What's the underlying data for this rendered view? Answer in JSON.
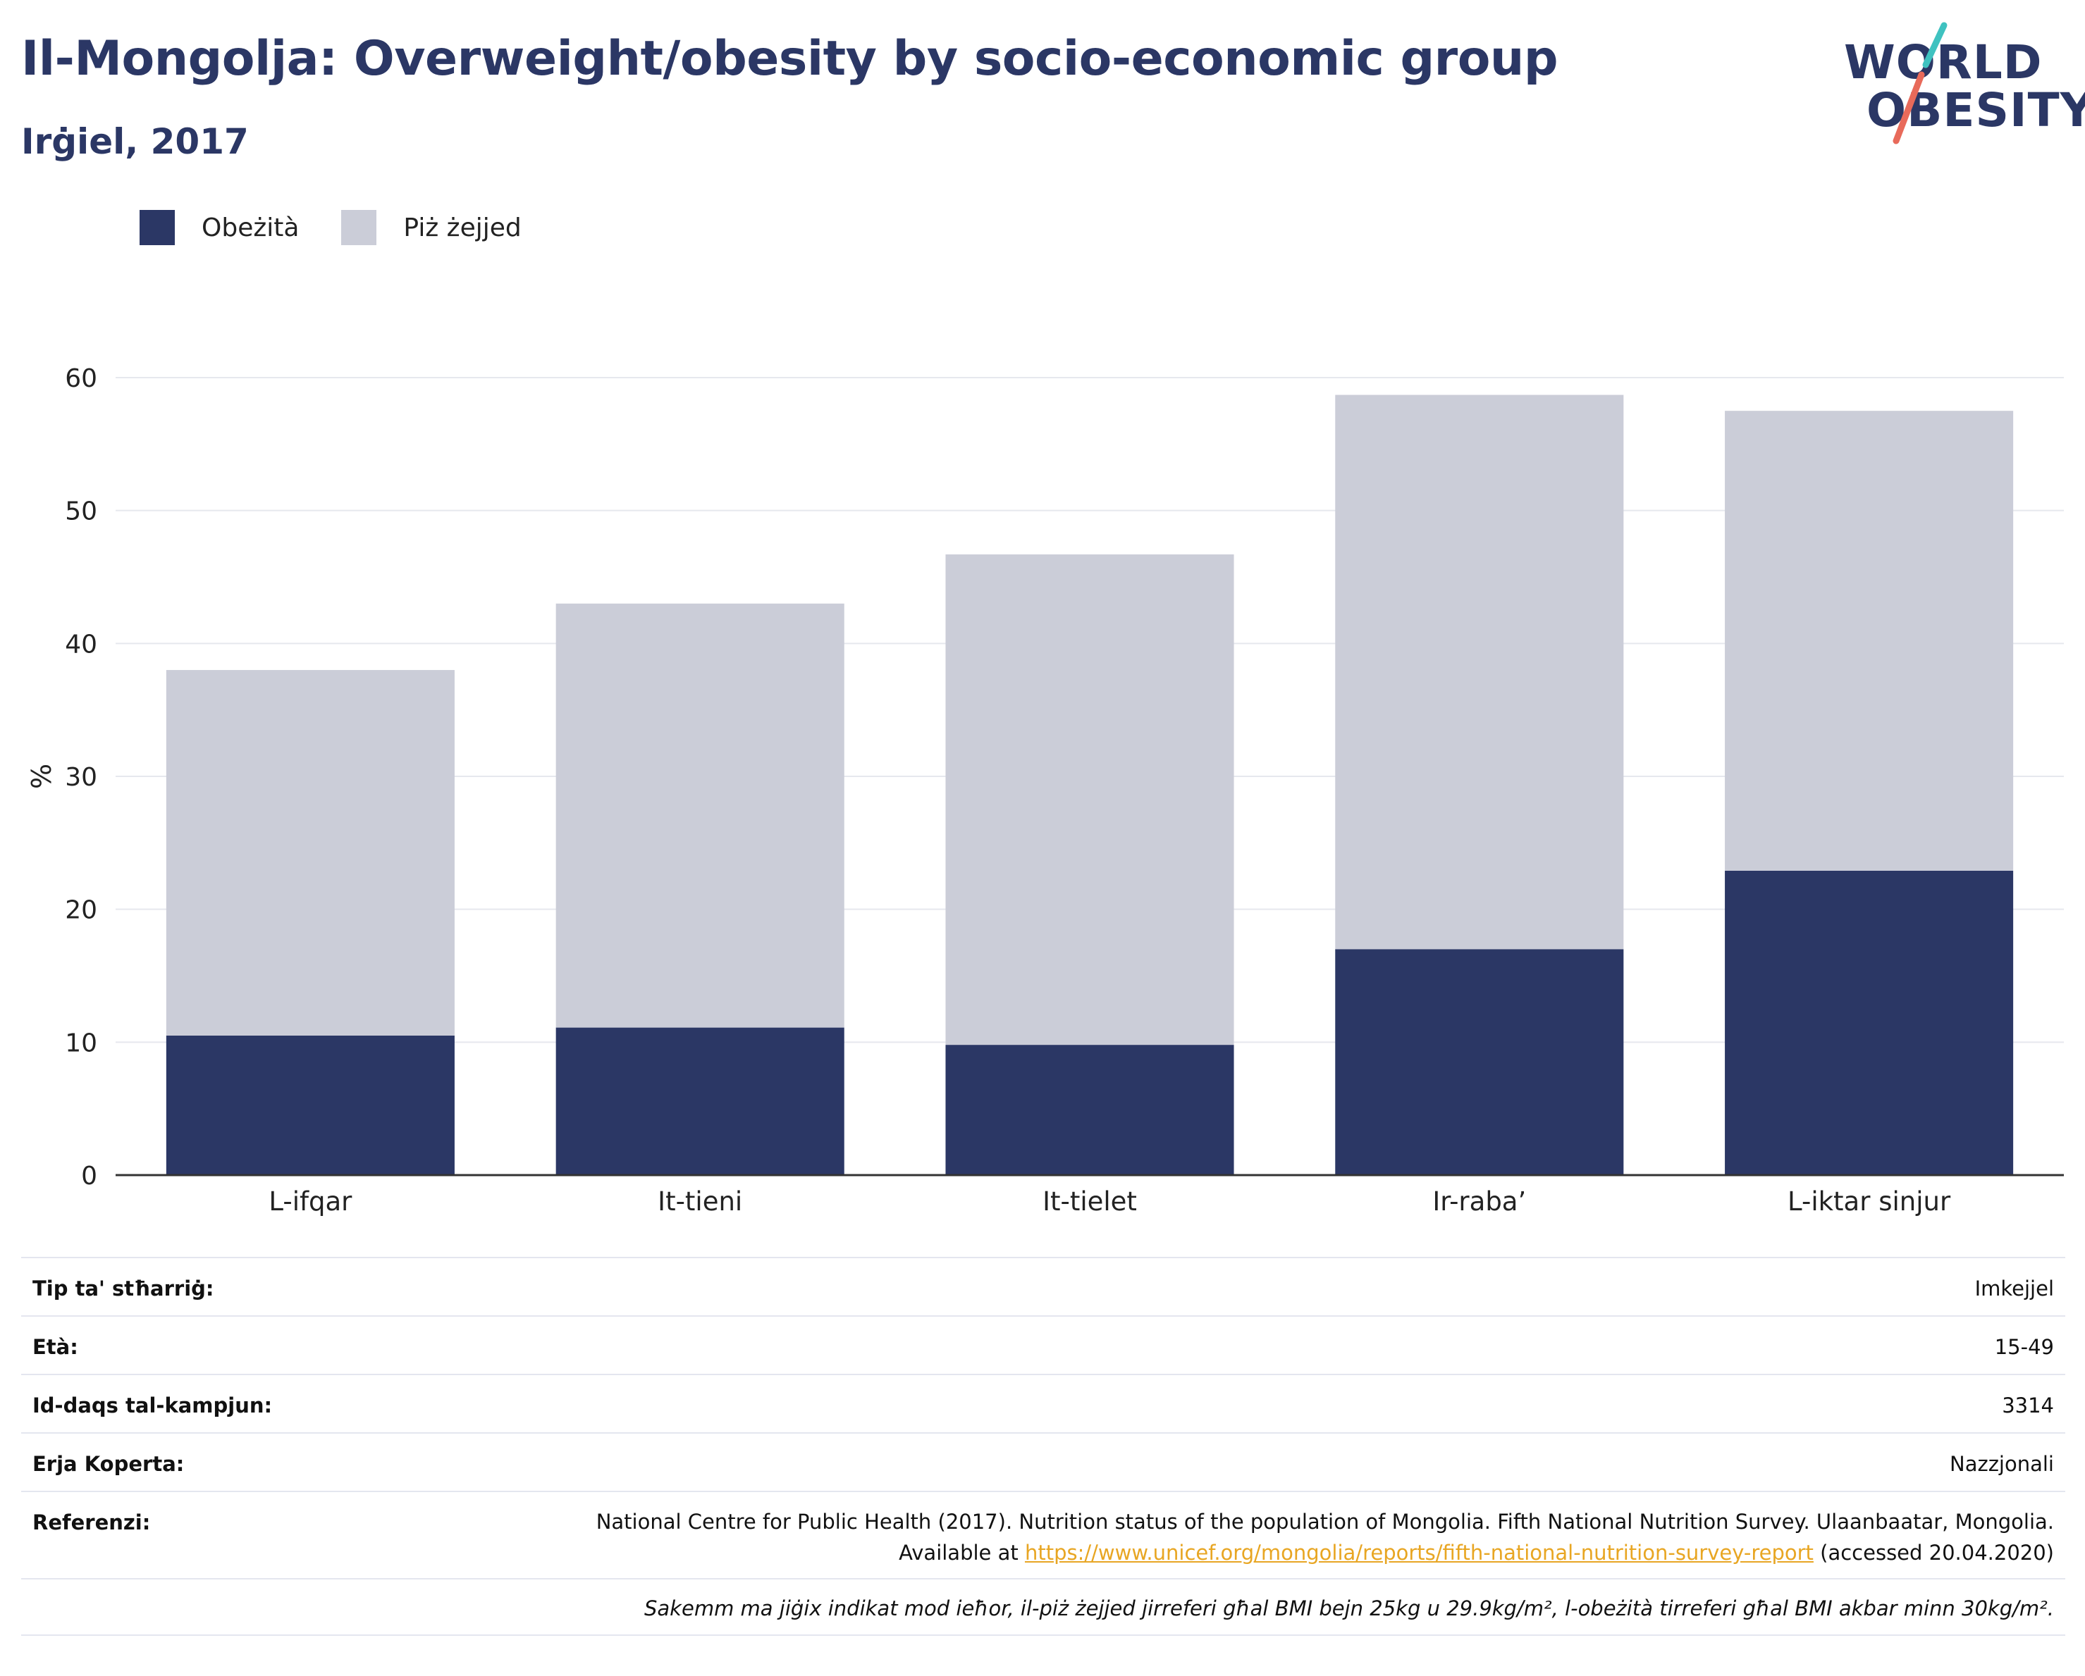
{
  "title": "Il-Mongolja: Overweight/obesity by socio-economic group",
  "subtitle": "Irġiel, 2017",
  "logo": {
    "line1": "WORLD",
    "line2": "OBESITY"
  },
  "colors": {
    "obesity": "#2b3765",
    "overweight": "#cbcdd8",
    "accent_teal": "#3fc2c0",
    "accent_coral": "#e86a5a",
    "link": "#e8a623"
  },
  "legend": [
    {
      "label": "Obeżità",
      "color": "#2b3765"
    },
    {
      "label": "Piż żejjed",
      "color": "#cbcdd8"
    }
  ],
  "chart_data": {
    "type": "bar",
    "stacked": true,
    "categories": [
      "L-ifqar",
      "It-tieni",
      "It-tielet",
      "Ir-raba’",
      "L-iktar sinjur"
    ],
    "series": [
      {
        "name": "Obeżità",
        "values": [
          10.5,
          11.1,
          9.8,
          17.0,
          22.9
        ]
      },
      {
        "name": "Piż żejjed",
        "values": [
          27.5,
          31.9,
          36.9,
          41.7,
          34.6
        ]
      }
    ],
    "totals": [
      38.0,
      43.0,
      46.7,
      58.7,
      57.5
    ],
    "ylabel": "%",
    "ylim": [
      0,
      60
    ],
    "yticks": [
      0,
      10,
      20,
      30,
      40,
      50,
      60
    ],
    "grid": true,
    "legend_position": "top-left"
  },
  "info": {
    "rows": [
      {
        "key": "Tip ta' stħarriġ:",
        "value": "Imkejjel"
      },
      {
        "key": "Età:",
        "value": "15-49"
      },
      {
        "key": "Id-daqs tal-kampjun:",
        "value": "3314"
      },
      {
        "key": "Erja Koperta:",
        "value": "Nazzjonali"
      }
    ],
    "reference": {
      "key": "Referenzi:",
      "text_before": "National Centre for Public Health (2017). Nutrition status of the population of Mongolia. Fifth National Nutrition Survey. Ulaanbaatar, Mongolia. Available at ",
      "link": "https://www.unicef.org/mongolia/reports/fifth-national-nutrition-survey-report",
      "text_after": " (accessed 20.04.2020)"
    },
    "note": "Sakemm ma jiġix indikat mod ieħor, il-piż żejjed jirreferi għal BMI bejn 25kg u 29.9kg/m², l-obeżità tirreferi għal BMI akbar minn 30kg/m²."
  }
}
